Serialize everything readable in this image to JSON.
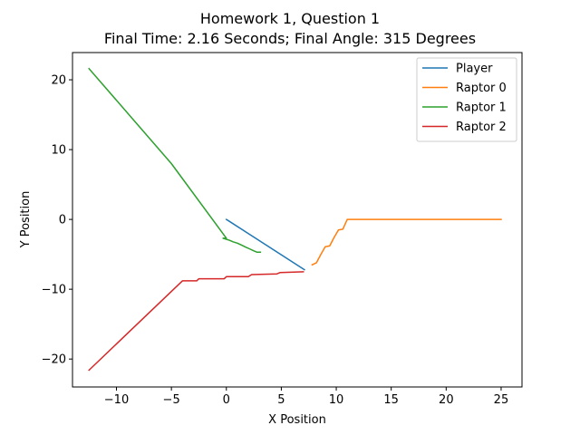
{
  "chart_data": {
    "type": "line",
    "title": "Homework 1, Question 1",
    "subtitle": "Final Time: 2.16 Seconds; Final Angle: 315 Degrees",
    "xlabel": "X Position",
    "ylabel": "Y Position",
    "xlim": [
      -14.0,
      26.9
    ],
    "ylim": [
      -24.0,
      23.9
    ],
    "xticks": [
      -10,
      -5,
      0,
      5,
      10,
      15,
      20,
      25
    ],
    "yticks": [
      -20,
      -10,
      0,
      10,
      20
    ],
    "xtick_labels": [
      "−10",
      "−5",
      "0",
      "5",
      "10",
      "15",
      "20",
      "25"
    ],
    "ytick_labels": [
      "−20",
      "−10",
      "0",
      "10",
      "20"
    ],
    "grid": false,
    "legend_position": "top-right",
    "series": [
      {
        "name": "Player",
        "color": "#1f77b4",
        "x": [
          0.0,
          7.1
        ],
        "y": [
          0.0,
          -7.2
        ]
      },
      {
        "name": "Raptor 0",
        "color": "#ff7f0e",
        "x": [
          7.8,
          8.2,
          8.6,
          9.0,
          9.4,
          9.8,
          10.2,
          10.6,
          11.0,
          15.0,
          20.0,
          25.0
        ],
        "y": [
          -6.5,
          -6.2,
          -5.0,
          -3.9,
          -3.8,
          -2.6,
          -1.5,
          -1.4,
          0.0,
          0.0,
          0.0,
          0.0
        ]
      },
      {
        "name": "Raptor 1",
        "color": "#2ca02c",
        "x": [
          -12.5,
          -5.0,
          0.0,
          -0.3,
          0.3,
          0.6,
          1.0,
          1.4,
          1.8,
          2.1,
          2.5,
          2.8,
          3.1
        ],
        "y": [
          21.6,
          8.0,
          -2.7,
          -2.7,
          -3.0,
          -3.2,
          -3.4,
          -3.7,
          -4.0,
          -4.2,
          -4.5,
          -4.7,
          -4.7
        ]
      },
      {
        "name": "Raptor 2",
        "color": "#d62728",
        "x": [
          -12.5,
          -4.0,
          -2.7,
          -2.5,
          -0.2,
          0.0,
          2.0,
          2.3,
          4.6,
          4.9,
          7.0
        ],
        "y": [
          -21.6,
          -8.8,
          -8.8,
          -8.5,
          -8.5,
          -8.2,
          -8.2,
          -7.9,
          -7.8,
          -7.6,
          -7.5
        ]
      }
    ]
  }
}
